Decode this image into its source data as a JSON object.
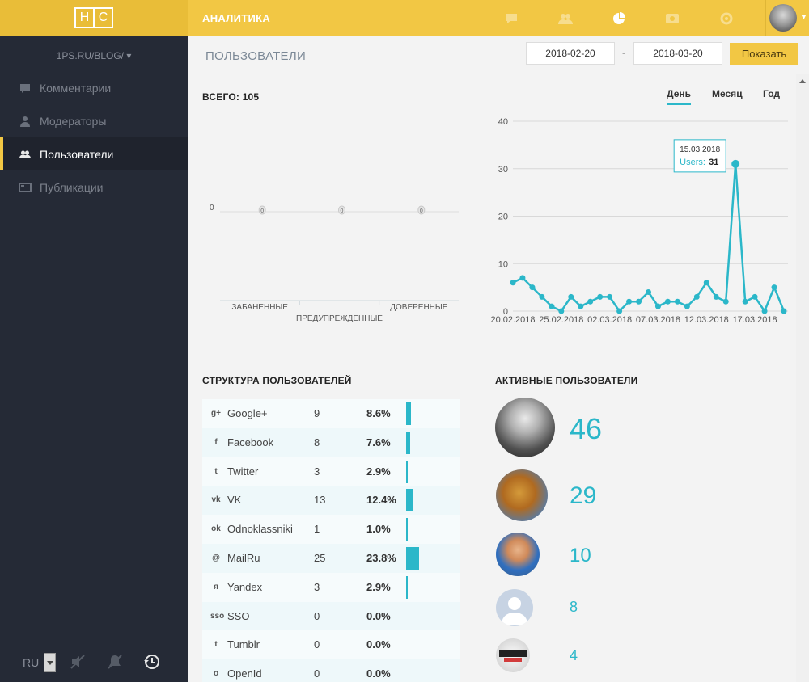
{
  "app": {
    "logo_left": "Н",
    "logo_right": "С",
    "section_title": "АНАЛИТИКА"
  },
  "sidebar": {
    "site": "1PS.RU/BLOG/ ▾",
    "items": [
      {
        "label": "Комментарии",
        "icon": "comment-icon",
        "active": false
      },
      {
        "label": "Модераторы",
        "icon": "moderator-icon",
        "active": false
      },
      {
        "label": "Пользователи",
        "icon": "users-icon",
        "active": true
      },
      {
        "label": "Публикации",
        "icon": "publication-icon",
        "active": false
      }
    ],
    "lang": "RU"
  },
  "header": {
    "title": "ПОЛЬЗОВАТЕЛИ",
    "date_from": "2018-02-20",
    "date_to": "2018-03-20",
    "separator": "-",
    "show_button": "Показать"
  },
  "summary": {
    "total_label": "ВСЕГО: 105"
  },
  "period_tabs": {
    "day": "День",
    "month": "Месяц",
    "year": "Год",
    "selected": "День"
  },
  "chart_data": [
    {
      "type": "bar",
      "categories": [
        "ЗАБАНЕННЫЕ",
        "ПРЕДУПРЕЖДЕННЫЕ",
        "ДОВЕРЕННЫЕ"
      ],
      "values": [
        0,
        0,
        0
      ],
      "ytick": "0"
    },
    {
      "type": "line",
      "x": [
        "20.02.2018",
        "21.02.2018",
        "22.02.2018",
        "23.02.2018",
        "24.02.2018",
        "25.02.2018",
        "26.02.2018",
        "27.02.2018",
        "28.02.2018",
        "01.03.2018",
        "02.03.2018",
        "03.03.2018",
        "04.03.2018",
        "05.03.2018",
        "06.03.2018",
        "07.03.2018",
        "08.03.2018",
        "09.03.2018",
        "10.03.2018",
        "11.03.2018",
        "12.03.2018",
        "13.03.2018",
        "14.03.2018",
        "15.03.2018",
        "16.03.2018",
        "17.03.2018",
        "18.03.2018",
        "19.03.2018",
        "20.03.2018"
      ],
      "series": [
        {
          "name": "Users",
          "values": [
            6,
            7,
            5,
            3,
            1,
            0,
            3,
            1,
            2,
            3,
            3,
            0,
            2,
            2,
            4,
            1,
            2,
            2,
            1,
            3,
            6,
            3,
            2,
            31,
            2,
            3,
            0,
            5,
            0
          ]
        }
      ],
      "xtick_labels": [
        "20.02.2018",
        "25.02.2018",
        "02.03.2018",
        "07.03.2018",
        "12.03.2018",
        "17.03.2018"
      ],
      "ytick_labels": [
        "0",
        "10",
        "20",
        "30",
        "40"
      ],
      "ylim": [
        0,
        40
      ],
      "tooltip": {
        "date": "15.03.2018",
        "label": "Users:",
        "value": "31"
      }
    }
  ],
  "structure": {
    "title": "СТРУКТУРА ПОЛЬЗОВАТЕЛЕЙ",
    "rows": [
      {
        "icon": "g+",
        "name": "Google+",
        "count": "9",
        "pct": "8.6%",
        "share": 8.6
      },
      {
        "icon": "f",
        "name": "Facebook",
        "count": "8",
        "pct": "7.6%",
        "share": 7.6
      },
      {
        "icon": "t",
        "name": "Twitter",
        "count": "3",
        "pct": "2.9%",
        "share": 2.9
      },
      {
        "icon": "vk",
        "name": "VK",
        "count": "13",
        "pct": "12.4%",
        "share": 12.4
      },
      {
        "icon": "ok",
        "name": "Odnoklassniki",
        "count": "1",
        "pct": "1.0%",
        "share": 1.0
      },
      {
        "icon": "@",
        "name": "MailRu",
        "count": "25",
        "pct": "23.8%",
        "share": 23.8
      },
      {
        "icon": "я",
        "name": "Yandex",
        "count": "3",
        "pct": "2.9%",
        "share": 2.9
      },
      {
        "icon": "sso",
        "name": "SSO",
        "count": "0",
        "pct": "0.0%",
        "share": 0
      },
      {
        "icon": "t",
        "name": "Tumblr",
        "count": "0",
        "pct": "0.0%",
        "share": 0
      },
      {
        "icon": "o",
        "name": "OpenId",
        "count": "0",
        "pct": "0.0%",
        "share": 0
      }
    ]
  },
  "active_users": {
    "title": "АКТИВНЫЕ ПОЛЬЗОВАТЕЛИ",
    "users": [
      {
        "value": "46"
      },
      {
        "value": "29"
      },
      {
        "value": "10"
      },
      {
        "value": "8"
      },
      {
        "value": "4"
      }
    ]
  },
  "colors": {
    "accent": "#f2c744",
    "teal": "#2bb7c9",
    "sidebar": "#252a36"
  }
}
